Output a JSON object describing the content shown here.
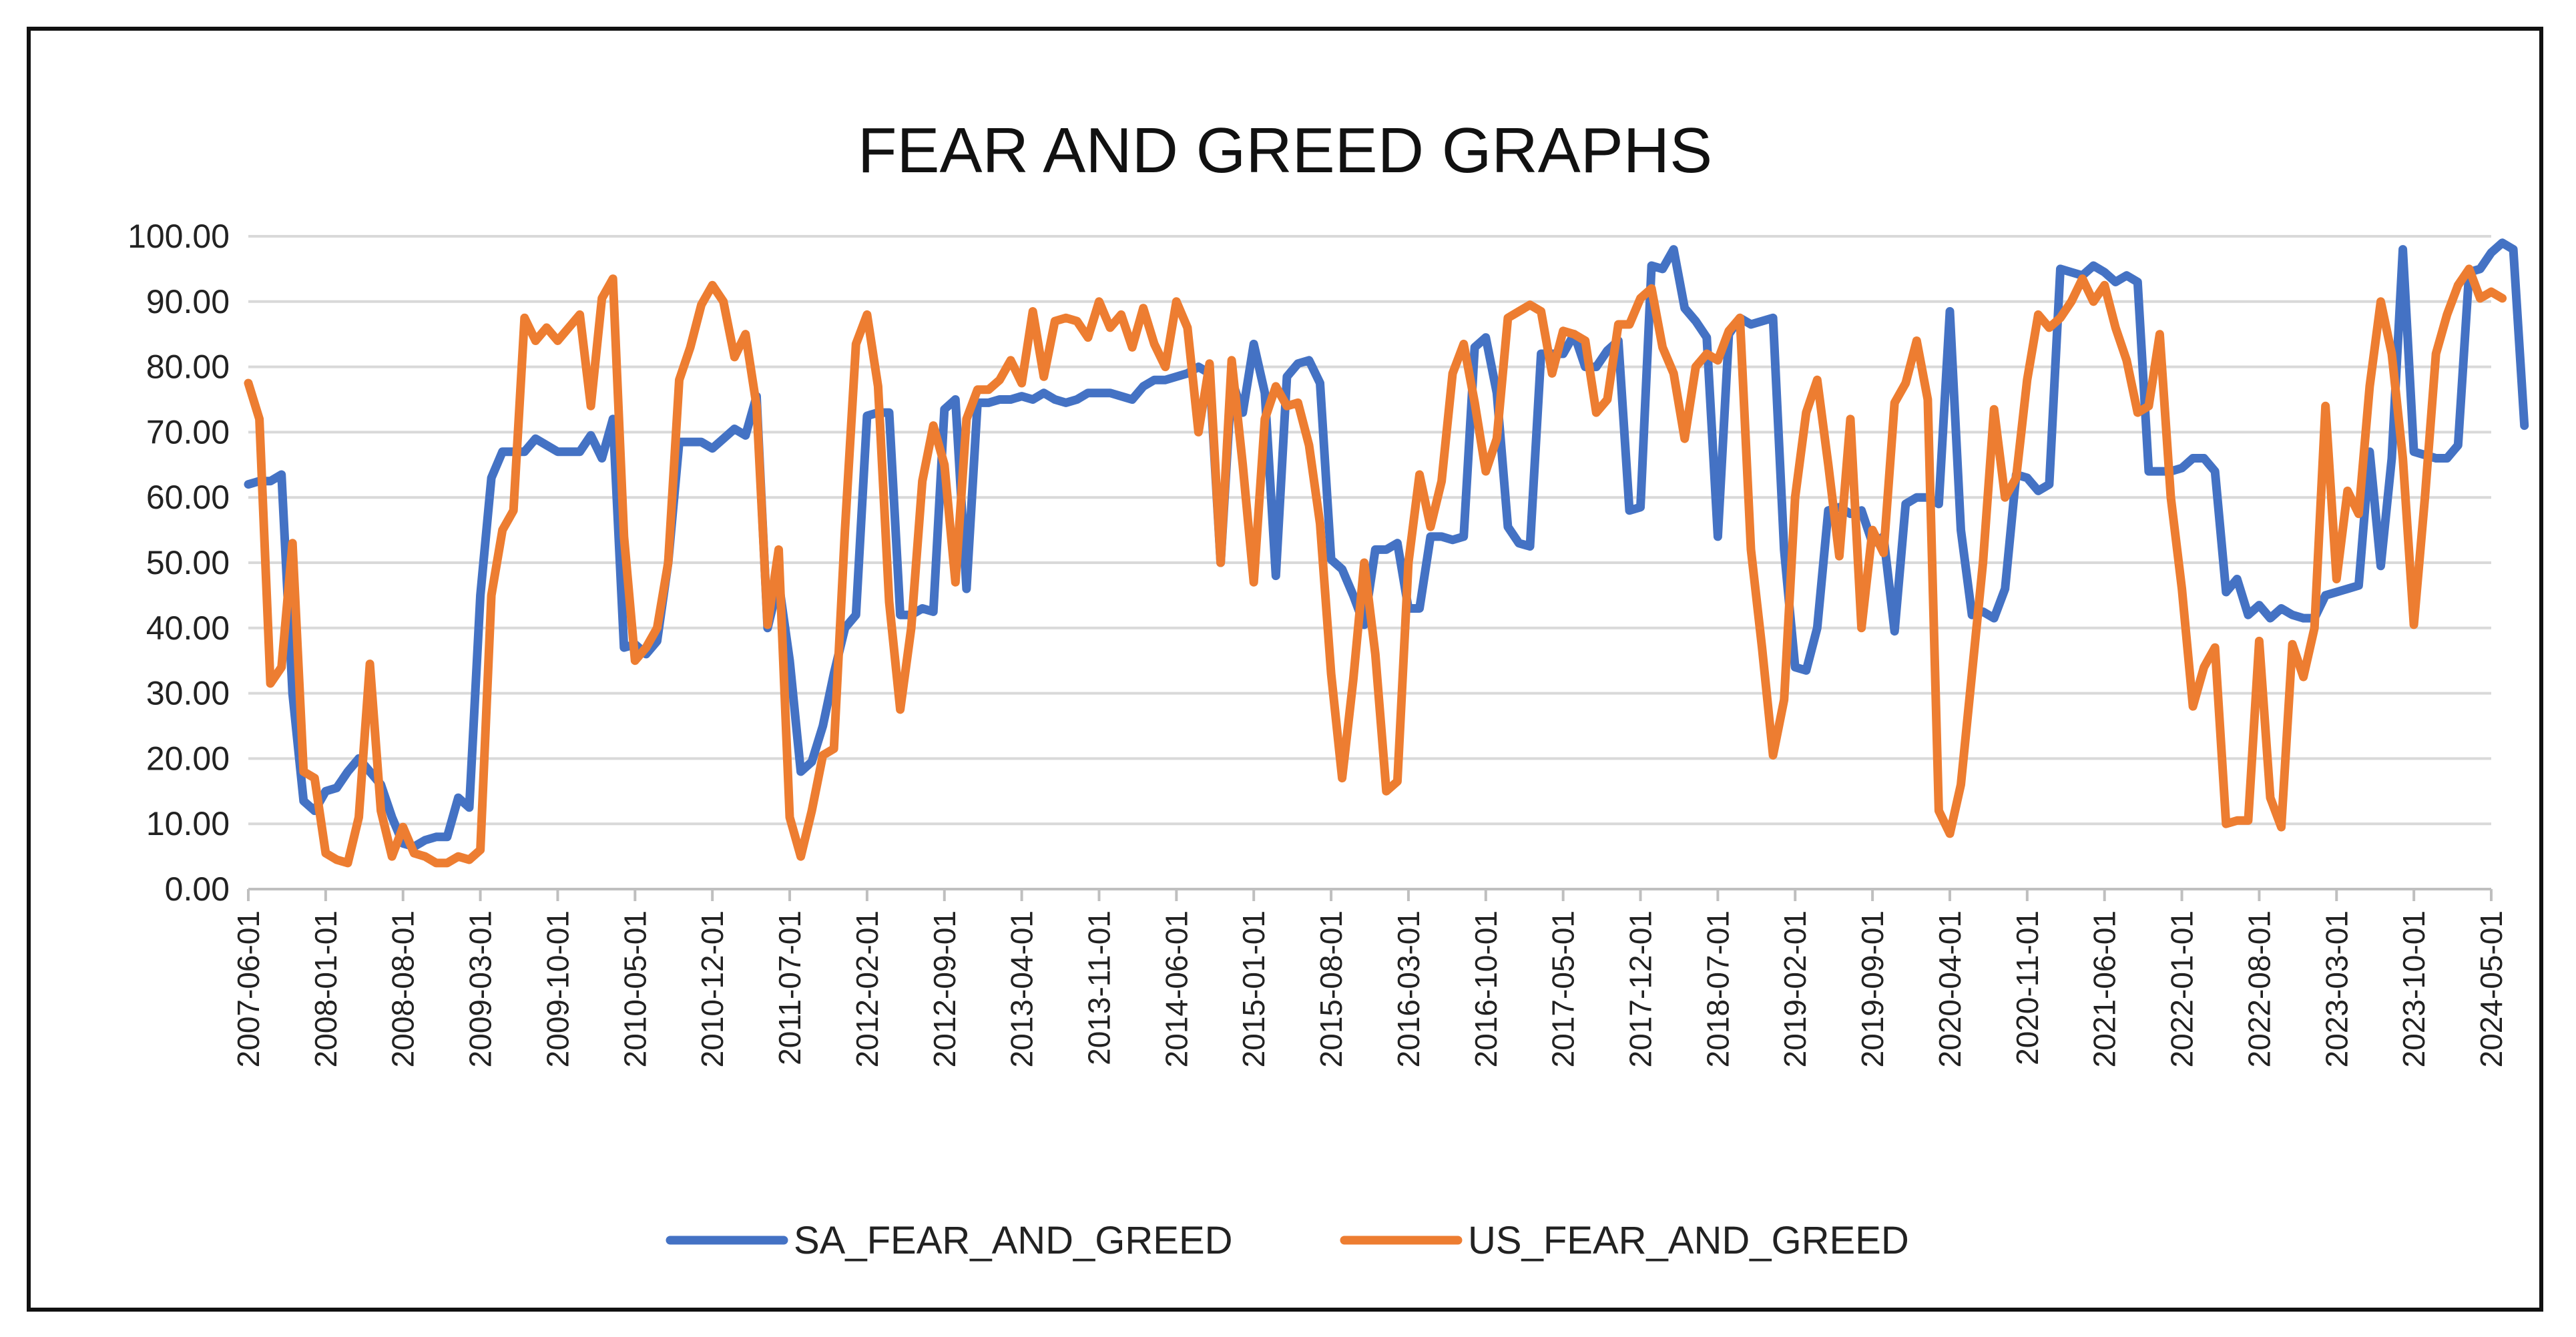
{
  "chart_data": {
    "type": "line",
    "title": "FEAR AND GREED GRAPHS",
    "xlabel": "",
    "ylabel": "",
    "ylim": [
      0,
      100
    ],
    "yticks": [
      "0.00",
      "10.00",
      "20.00",
      "30.00",
      "40.00",
      "50.00",
      "60.00",
      "70.00",
      "80.00",
      "90.00",
      "100.00"
    ],
    "start_month": "2007-06",
    "num_points": 204,
    "tick_labels": [
      "2007-06-01",
      "2008-01-01",
      "2008-08-01",
      "2009-03-01",
      "2009-10-01",
      "2010-05-01",
      "2010-12-01",
      "2011-07-01",
      "2012-02-01",
      "2012-09-01",
      "2013-04-01",
      "2013-11-01",
      "2014-06-01",
      "2015-01-01",
      "2015-08-01",
      "2016-03-01",
      "2016-10-01",
      "2017-05-01",
      "2017-12-01",
      "2018-07-01",
      "2019-02-01",
      "2019-09-01",
      "2020-04-01",
      "2020-11-01",
      "2021-06-01",
      "2022-01-01",
      "2022-08-01",
      "2023-03-01",
      "2023-10-01",
      "2024-05-01"
    ],
    "legend": {
      "position": "bottom"
    },
    "grid": true,
    "series": [
      {
        "name": "SA_FEAR_AND_GREED",
        "color": "#4472C4",
        "values": [
          62.0,
          62.5,
          62.5,
          63.5,
          30.0,
          13.5,
          12.0,
          15.0,
          15.5,
          18.0,
          20.0,
          18.0,
          16.0,
          11.0,
          7.0,
          6.5,
          7.5,
          8.0,
          8.0,
          14.0,
          12.5,
          45.0,
          63.0,
          67.0,
          67.0,
          67.0,
          69.0,
          68.0,
          67.0,
          67.0,
          67.0,
          69.5,
          66.0,
          72.0,
          37.0,
          37.5,
          36.0,
          38.0,
          50.0,
          68.5,
          68.5,
          68.5,
          67.5,
          69.0,
          70.5,
          69.5,
          75.5,
          40.0,
          47.0,
          35.0,
          18.0,
          19.5,
          25.0,
          33.0,
          40.0,
          42.0,
          72.5,
          73.0,
          73.0,
          42.0,
          42.0,
          43.0,
          42.5,
          73.5,
          75.0,
          46.0,
          74.5,
          74.5,
          75.0,
          75.0,
          75.5,
          75.0,
          76.0,
          75.0,
          74.5,
          75.0,
          76.0,
          76.0,
          76.0,
          75.5,
          75.0,
          77.0,
          78.0,
          78.0,
          78.5,
          79.0,
          80.0,
          79.0,
          50.0,
          78.0,
          73.0,
          83.5,
          76.0,
          48.0,
          78.5,
          80.5,
          81.0,
          77.5,
          50.5,
          49.0,
          45.0,
          40.5,
          52.0,
          52.0,
          53.0,
          43.0,
          43.0,
          54.0,
          54.0,
          53.5,
          54.0,
          83.0,
          84.5,
          76.0,
          55.5,
          53.0,
          52.5,
          82.0,
          82.0,
          82.0,
          85.0,
          80.0,
          80.0,
          82.5,
          84.0,
          58.0,
          58.5,
          95.5,
          95.0,
          98.0,
          89.0,
          87.0,
          84.5,
          54.0,
          85.0,
          87.5,
          86.5,
          87.0,
          87.5,
          52.0,
          34.0,
          33.5,
          40.0,
          58.0,
          58.5,
          57.5,
          58.0,
          53.0,
          54.0,
          39.5,
          59.0,
          60.0,
          60.0,
          59.0,
          88.5,
          55.0,
          42.0,
          42.5,
          41.5,
          46.0,
          63.5,
          63.0,
          61.0,
          62.0,
          95.0,
          94.5,
          94.0,
          95.5,
          94.5,
          93.0,
          94.0,
          93.0,
          64.0,
          64.0,
          64.0,
          64.5,
          66.0,
          66.0,
          64.0,
          45.5,
          47.5,
          42.0,
          43.5,
          41.5,
          43.0,
          42.0,
          41.5,
          41.5,
          45.0,
          45.5,
          46.0,
          46.5,
          67.0,
          49.5,
          66.0,
          98.0,
          67.0,
          66.5,
          66.0,
          66.0,
          68.0,
          94.5,
          95.0,
          97.5,
          99.0,
          98.0,
          71.0
        ]
      },
      {
        "name": "US_FEAR_AND_GREED",
        "color": "#ED7D31",
        "values": [
          77.5,
          72.0,
          31.5,
          34.0,
          53.0,
          18.0,
          17.0,
          5.5,
          4.5,
          4.0,
          11.0,
          34.5,
          12.0,
          5.0,
          9.5,
          5.5,
          5.0,
          4.0,
          4.0,
          5.0,
          4.5,
          6.0,
          45.0,
          55.0,
          58.0,
          87.5,
          84.0,
          86.0,
          84.0,
          86.0,
          88.0,
          74.0,
          90.5,
          93.5,
          54.0,
          35.0,
          37.0,
          40.0,
          50.0,
          78.0,
          83.0,
          89.5,
          92.5,
          90.0,
          81.5,
          85.0,
          74.0,
          40.5,
          52.0,
          11.0,
          5.0,
          12.0,
          20.5,
          21.5,
          55.0,
          83.5,
          88.0,
          77.0,
          44.0,
          27.5,
          40.0,
          62.5,
          71.0,
          65.0,
          47.0,
          72.0,
          76.5,
          76.5,
          78.0,
          81.0,
          77.5,
          88.5,
          78.5,
          87.0,
          87.5,
          87.0,
          84.5,
          90.0,
          86.0,
          88.0,
          83.0,
          89.0,
          83.5,
          80.0,
          90.0,
          86.0,
          70.0,
          80.5,
          50.0,
          81.0,
          65.0,
          47.0,
          72.0,
          77.0,
          74.0,
          74.5,
          68.0,
          56.0,
          33.0,
          17.0,
          32.0,
          50.0,
          36.0,
          15.0,
          16.5,
          50.0,
          63.5,
          55.5,
          62.5,
          79.0,
          83.5,
          74.5,
          64.0,
          69.0,
          87.5,
          88.5,
          89.5,
          88.5,
          79.0,
          85.5,
          85.0,
          84.0,
          73.0,
          75.0,
          86.5,
          86.5,
          90.5,
          92.0,
          83.0,
          79.0,
          69.0,
          80.0,
          82.0,
          81.0,
          85.5,
          87.5,
          52.0,
          37.0,
          20.5,
          29.0,
          60.0,
          73.0,
          78.0,
          65.0,
          51.0,
          72.0,
          40.0,
          55.0,
          51.5,
          74.5,
          77.5,
          84.0,
          75.0,
          12.0,
          8.5,
          16.0,
          33.0,
          50.0,
          73.5,
          60.0,
          63.0,
          78.0,
          88.0,
          86.0,
          87.5,
          90.0,
          93.5,
          90.0,
          92.5,
          86.0,
          81.0,
          73.0,
          74.0,
          85.0,
          60.0,
          46.0,
          28.0,
          34.0,
          37.0,
          10.0,
          10.5,
          10.5,
          38.0,
          14.0,
          9.5,
          37.5,
          32.5,
          40.0,
          74.0,
          47.5,
          61.0,
          57.5,
          77.0,
          90.0,
          82.0,
          66.0,
          40.5,
          60.0,
          82.0,
          88.0,
          92.5,
          95.0,
          90.5,
          91.5,
          90.5
        ]
      }
    ]
  }
}
